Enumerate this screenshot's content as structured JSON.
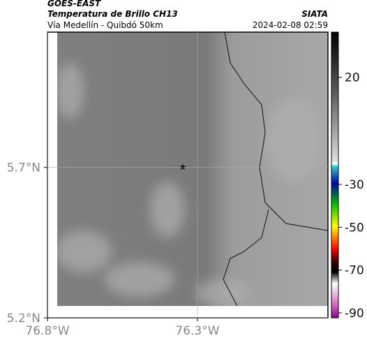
{
  "header": {
    "title": "GOES-EAST",
    "subtitle": "Temperatura de Brillo CH13",
    "credit": "SIATA",
    "region": "Vía Medellín - Quibdó 50km",
    "timestamp": "2024-02-08 02:59"
  },
  "map": {
    "xlim": [
      -76.8,
      -75.865
    ],
    "ylim": [
      5.2,
      6.15
    ],
    "xticks": [
      {
        "value": -76.8,
        "label": "76.8°W"
      },
      {
        "value": -76.3,
        "label": "76.3°W"
      }
    ],
    "yticks": [
      {
        "value": 5.7,
        "label": "5.7°N"
      },
      {
        "value": 5.2,
        "label": "5.2°N"
      }
    ]
  },
  "colorbar": {
    "clim": [
      -92.3,
      41.1
    ],
    "ticks": [
      20,
      -30,
      -50,
      -70,
      -90
    ]
  }
}
